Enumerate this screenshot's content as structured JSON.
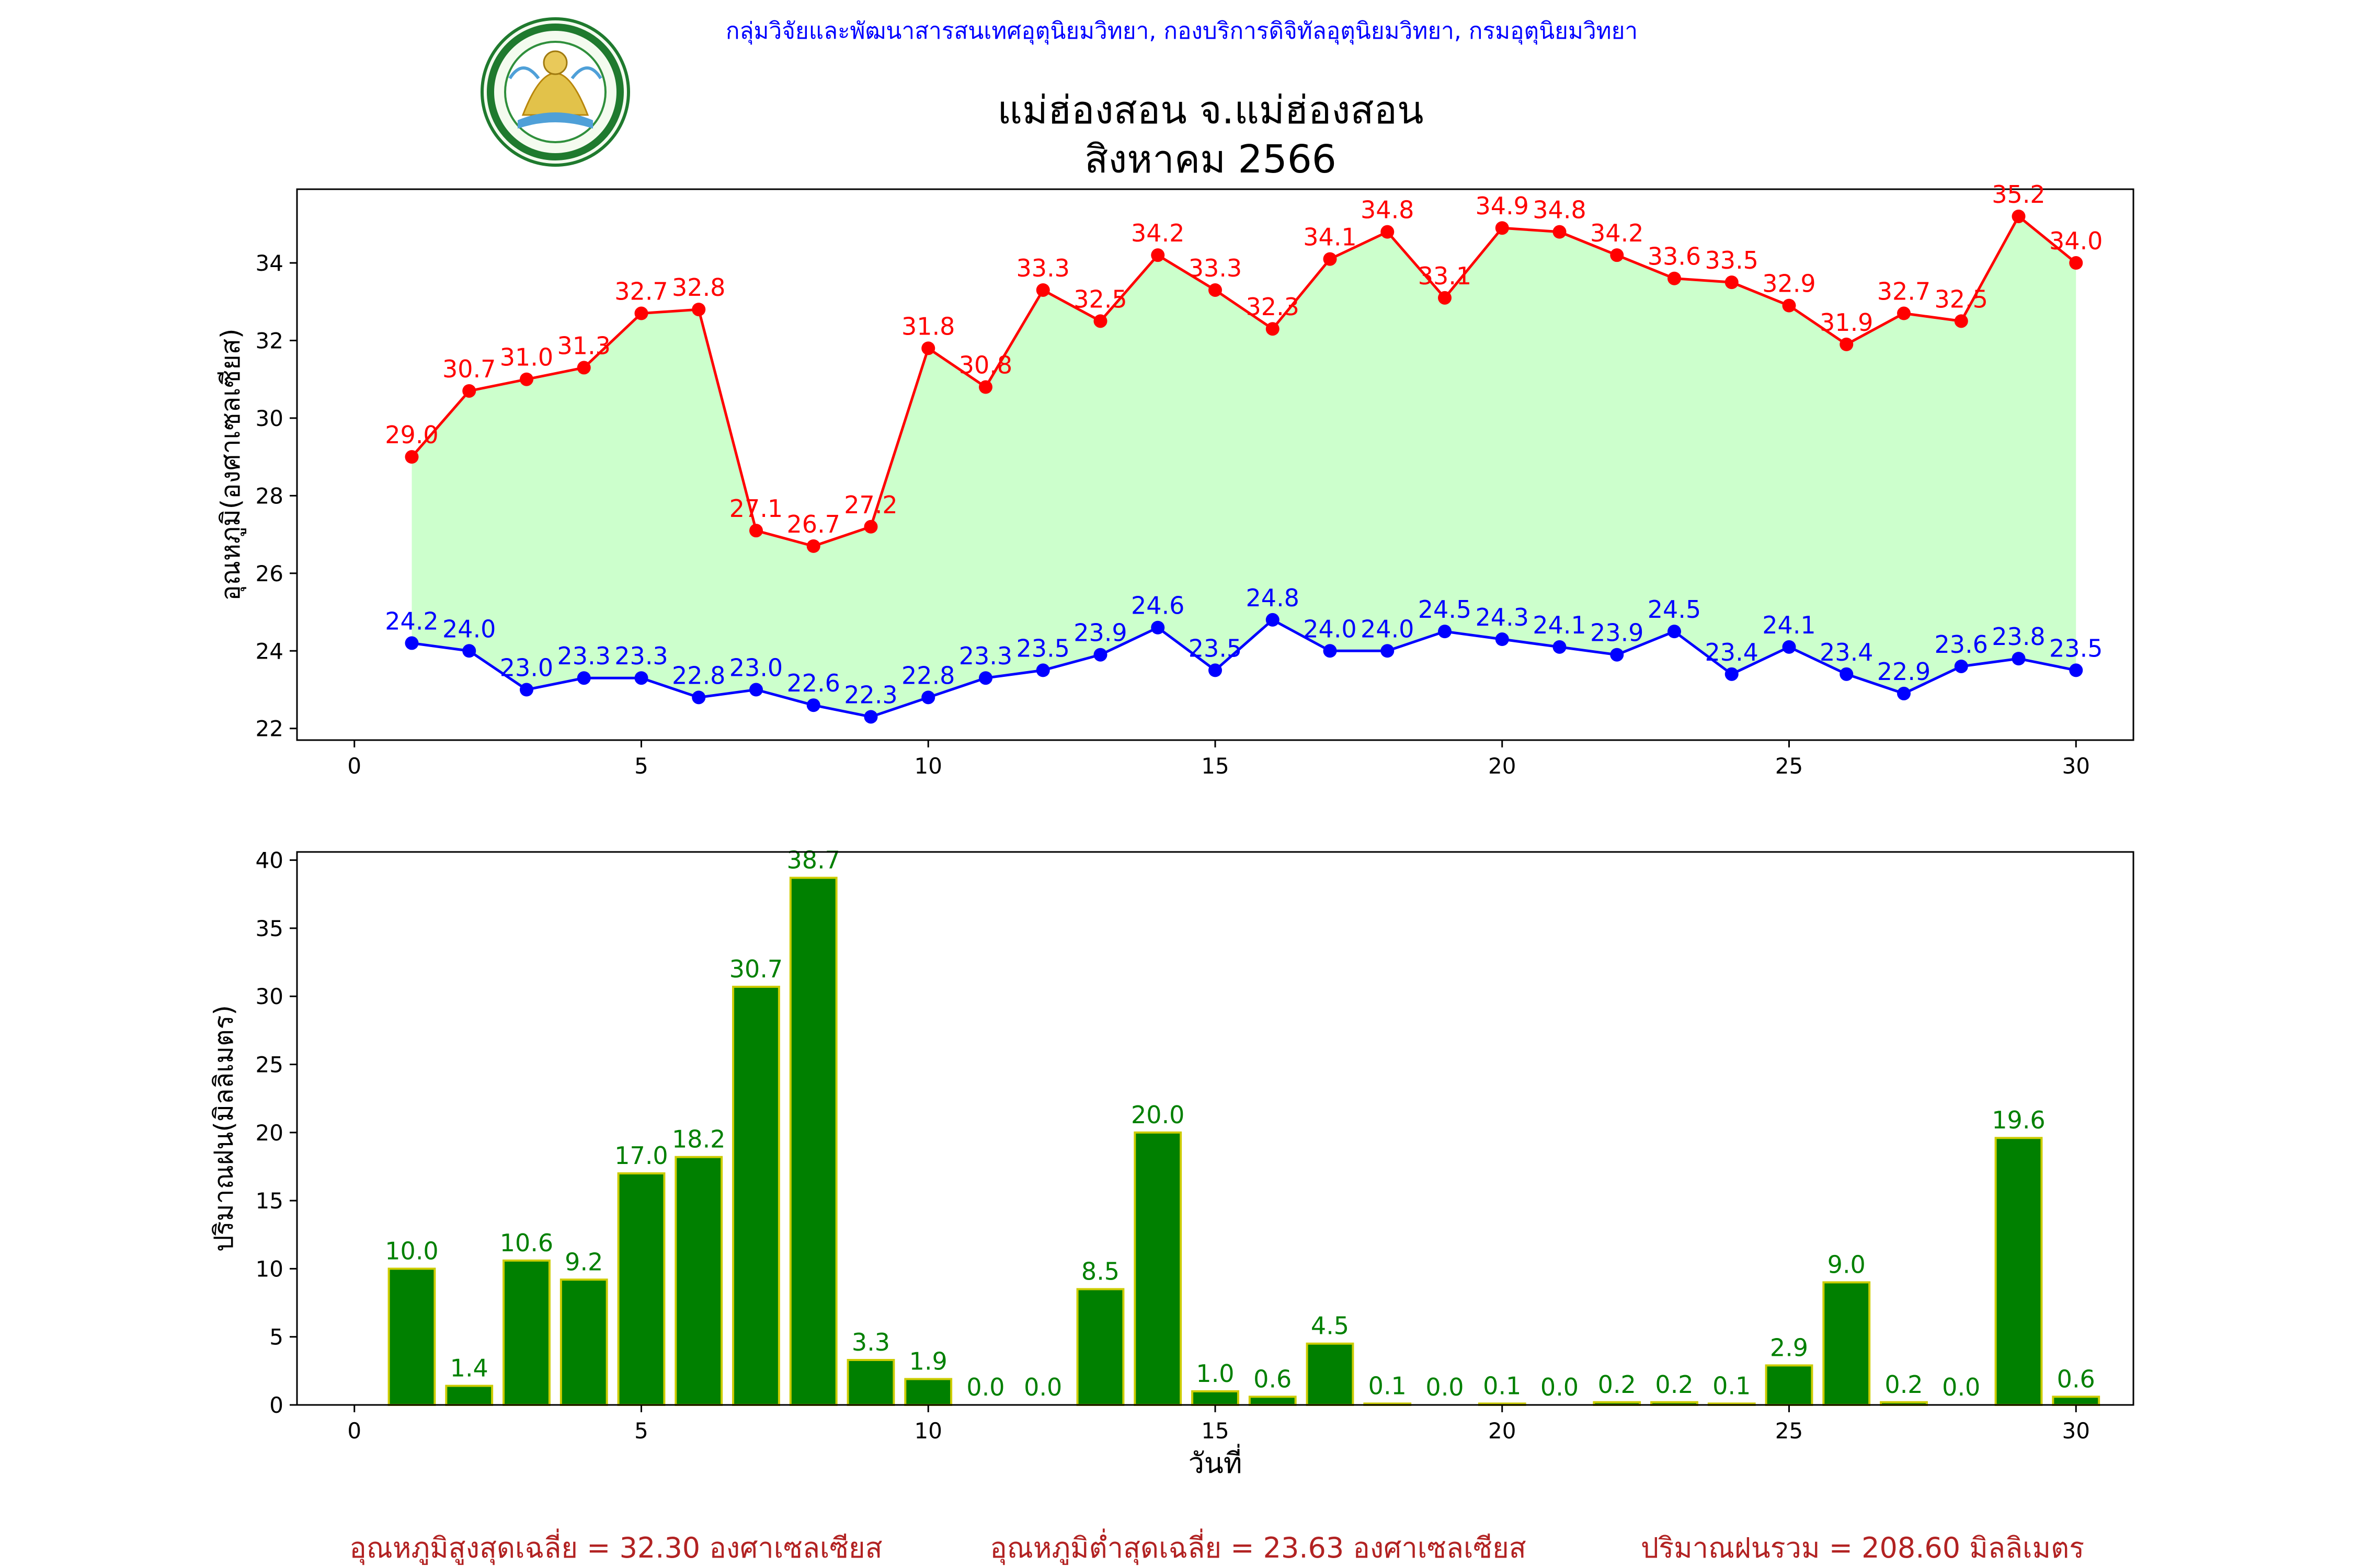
{
  "header": {
    "agency": "กลุ่มวิจัยและพัฒนาสารสนเทศอุตุนิยมวิทยา, กองบริการดิจิทัลอุตุนิยมวิทยา, กรมอุตุนิยมวิทยา",
    "logo_text": "METEOROLOGICAL DEPARTMENT",
    "title_line1": "แม่ฮ่องสอน จ.แม่ฮ่องสอน",
    "title_line2": "สิงหาคม 2566"
  },
  "colors": {
    "max_temp": "#ff0000",
    "min_temp": "#0000ff",
    "fill": "#ccffcc",
    "rain_bar": "#008000",
    "rain_edge": "#cccc00",
    "agency_text": "#0000ff",
    "summary_text": "#b22222"
  },
  "chart_data": [
    {
      "type": "line",
      "ylabel": "อุณหภูมิ(องศาเซลเซียส)",
      "xlim": [
        -1,
        31
      ],
      "ylim": [
        21.7,
        35.9
      ],
      "xticks": [
        0,
        5,
        10,
        15,
        20,
        25,
        30
      ],
      "yticks": [
        22,
        24,
        26,
        28,
        30,
        32,
        34
      ],
      "x": [
        1,
        2,
        3,
        4,
        5,
        6,
        7,
        8,
        9,
        10,
        11,
        12,
        13,
        14,
        15,
        16,
        17,
        18,
        19,
        20,
        21,
        22,
        23,
        24,
        25,
        26,
        27,
        28,
        29,
        30
      ],
      "series": [
        {
          "values": [
            29.0,
            30.7,
            31.0,
            31.3,
            32.7,
            32.8,
            27.1,
            26.7,
            27.2,
            31.8,
            30.8,
            33.3,
            32.5,
            34.2,
            33.3,
            32.3,
            34.1,
            34.8,
            33.1,
            34.9,
            34.8,
            34.2,
            33.6,
            33.5,
            32.9,
            31.9,
            32.7,
            32.5,
            35.2,
            34.0
          ]
        },
        {
          "values": [
            24.2,
            24.0,
            23.0,
            23.3,
            23.3,
            22.8,
            23.0,
            22.6,
            22.3,
            22.8,
            23.3,
            23.5,
            23.9,
            24.6,
            23.5,
            24.8,
            24.0,
            24.0,
            24.5,
            24.3,
            24.1,
            23.9,
            24.5,
            23.4,
            24.1,
            23.4,
            22.9,
            23.6,
            23.8,
            23.5
          ]
        }
      ]
    },
    {
      "type": "bar",
      "xlabel": "วันที่",
      "ylabel": "ปริมาณฝน(มิลลิเมตร)",
      "xlim": [
        -1,
        31
      ],
      "ylim": [
        0,
        40.6
      ],
      "xticks": [
        0,
        5,
        10,
        15,
        20,
        25,
        30
      ],
      "yticks": [
        0,
        5,
        10,
        15,
        20,
        25,
        30,
        35,
        40
      ],
      "x": [
        1,
        2,
        3,
        4,
        5,
        6,
        7,
        8,
        9,
        10,
        11,
        12,
        13,
        14,
        15,
        16,
        17,
        18,
        19,
        20,
        21,
        22,
        23,
        24,
        25,
        26,
        27,
        28,
        29,
        30
      ],
      "values": [
        10.0,
        1.4,
        10.6,
        9.2,
        17.0,
        18.2,
        30.7,
        38.7,
        3.3,
        1.9,
        0.0,
        0.0,
        8.5,
        20.0,
        1.0,
        0.6,
        4.5,
        0.1,
        0.0,
        0.1,
        0.0,
        0.2,
        0.2,
        0.1,
        2.9,
        9.0,
        0.2,
        0.0,
        19.6,
        0.6
      ]
    }
  ],
  "summary": {
    "avg_max": "อุณหภูมิสูงสุดเฉลี่ย = 32.30 องศาเซลเซียส",
    "avg_min": "อุณหภูมิต่ำสุดเฉลี่ย = 23.63 องศาเซลเซียส",
    "total_rain": "ปริมาณฝนรวม = 208.60 มิลลิเมตร"
  }
}
